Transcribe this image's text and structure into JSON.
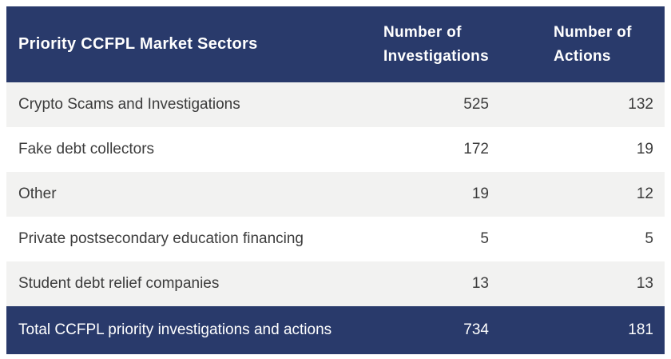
{
  "colors": {
    "header_bg": "#293a6b",
    "header_text": "#ffffff",
    "row_alt_bg": "#f2f2f1",
    "row_bg": "#ffffff",
    "body_text": "#3c3c3c",
    "total_bg": "#293a6b",
    "total_text": "#ffffff"
  },
  "table": {
    "columns": [
      {
        "label": "Priority CCFPL Market Sectors"
      },
      {
        "label": "Number of Investigations"
      },
      {
        "label": "Number of Actions"
      }
    ],
    "rows": [
      {
        "sector": "Crypto Scams and Investigations",
        "investigations": "525",
        "actions": "132"
      },
      {
        "sector": "Fake debt collectors",
        "investigations": "172",
        "actions": "19"
      },
      {
        "sector": "Other",
        "investigations": "19",
        "actions": "12"
      },
      {
        "sector": "Private postsecondary education financing",
        "investigations": "5",
        "actions": "5"
      },
      {
        "sector": "Student debt relief companies",
        "investigations": "13",
        "actions": "13"
      }
    ],
    "total": {
      "label": "Total CCFPL priority investigations and actions",
      "investigations": "734",
      "actions": "181"
    }
  },
  "chart_data": {
    "type": "table",
    "title": "Priority CCFPL Market Sectors",
    "columns": [
      "Priority CCFPL Market Sectors",
      "Number of Investigations",
      "Number of Actions"
    ],
    "rows": [
      [
        "Crypto Scams and Investigations",
        525,
        132
      ],
      [
        "Fake debt collectors",
        172,
        19
      ],
      [
        "Other",
        19,
        12
      ],
      [
        "Private postsecondary education financing",
        5,
        5
      ],
      [
        "Student debt relief companies",
        13,
        13
      ]
    ],
    "total_row": [
      "Total CCFPL priority investigations and actions",
      734,
      181
    ],
    "layout_hints": {
      "header_style": "navy background, white bold text",
      "zebra_striping": true,
      "numeric_columns_right_aligned": true,
      "total_row_style": "navy background, white text"
    }
  }
}
